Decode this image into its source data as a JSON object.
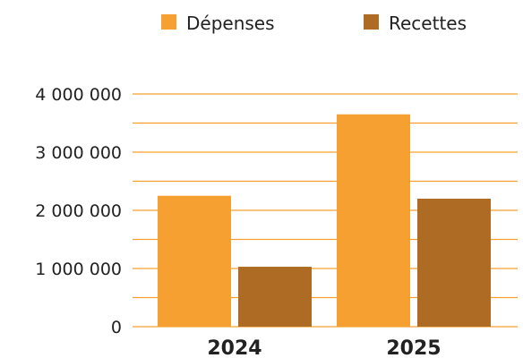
{
  "chart_data": {
    "type": "bar",
    "categories": [
      "2024",
      "2025"
    ],
    "series": [
      {
        "name": "Dépenses",
        "values": [
          2250000,
          3650000
        ],
        "color": "#F5A030"
      },
      {
        "name": "Recettes",
        "values": [
          1030000,
          2200000
        ],
        "color": "#AD6B23"
      }
    ],
    "ylim": [
      0,
      4000000
    ],
    "y_ticks": [
      {
        "value": 0,
        "label": "0"
      },
      {
        "value": 1000000,
        "label": "1 000 000"
      },
      {
        "value": 2000000,
        "label": "2 000 000"
      },
      {
        "value": 3000000,
        "label": "3 000 000"
      },
      {
        "value": 4000000,
        "label": "4 000 000"
      }
    ],
    "minor_grid_step": 500000,
    "grid": true,
    "grid_color": "#F5A030",
    "legend_position": "top-right",
    "title": "",
    "xlabel": "",
    "ylabel": ""
  }
}
